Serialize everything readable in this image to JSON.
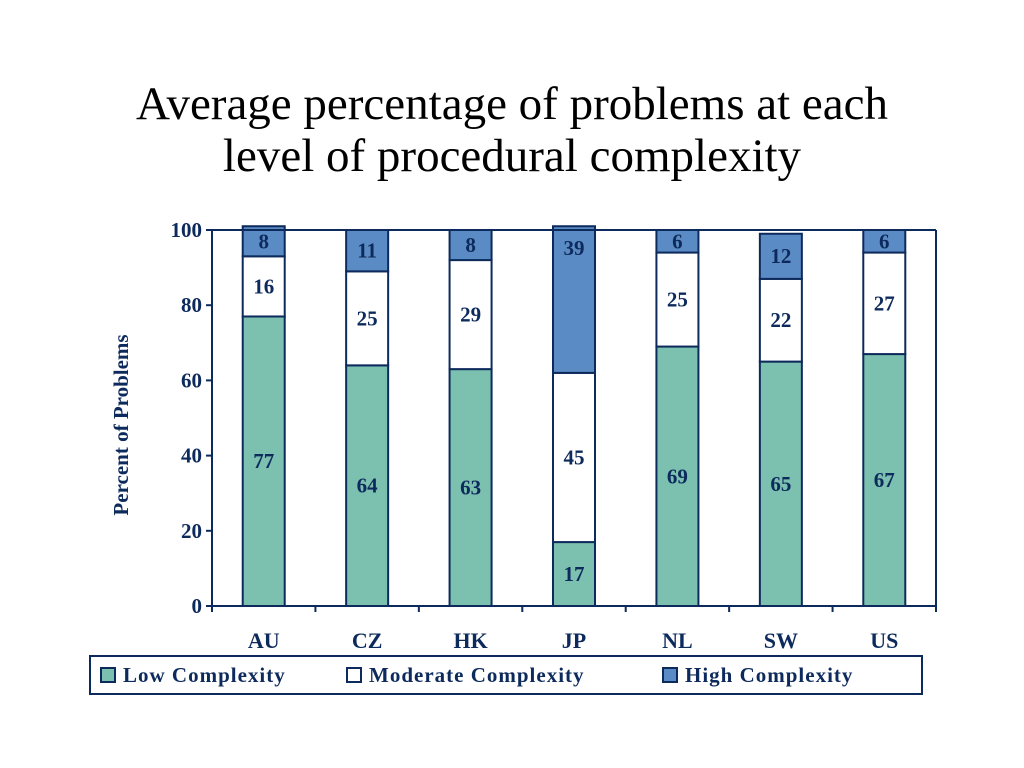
{
  "chart_data": {
    "type": "bar",
    "stacked": true,
    "title": "Average percentage of problems at each level of procedural complexity",
    "title_lines": [
      "Average percentage of problems at each",
      "level of procedural complexity"
    ],
    "xlabel": "",
    "ylabel": "Percent of Problems",
    "ylim": [
      0,
      100
    ],
    "yticks": [
      "0",
      "20",
      "40",
      "60",
      "80",
      "100"
    ],
    "grid": false,
    "legend_position": "bottom",
    "categories": [
      "AU",
      "CZ",
      "HK",
      "JP",
      "NL",
      "SW",
      "US"
    ],
    "series": [
      {
        "name": "Low Complexity",
        "color": "#7cc0b0",
        "values": [
          77,
          64,
          63,
          17,
          69,
          65,
          67
        ]
      },
      {
        "name": "Moderate Complexity",
        "color": "#ffffff",
        "values": [
          16,
          25,
          29,
          45,
          25,
          22,
          27
        ]
      },
      {
        "name": "High Complexity",
        "color": "#5b8bc4",
        "values": [
          8,
          11,
          8,
          39,
          6,
          12,
          6
        ]
      }
    ],
    "value_labels": [
      [
        "77",
        "64",
        "63",
        "17",
        "69",
        "65",
        "67"
      ],
      [
        "16",
        "25",
        "29",
        "45",
        "25",
        "22",
        "27"
      ],
      [
        "8",
        "11",
        "8",
        "39",
        "6",
        "12",
        "6"
      ]
    ],
    "colors": {
      "axis": "#0d2a5c",
      "label_text": "#0d2a5c"
    }
  }
}
